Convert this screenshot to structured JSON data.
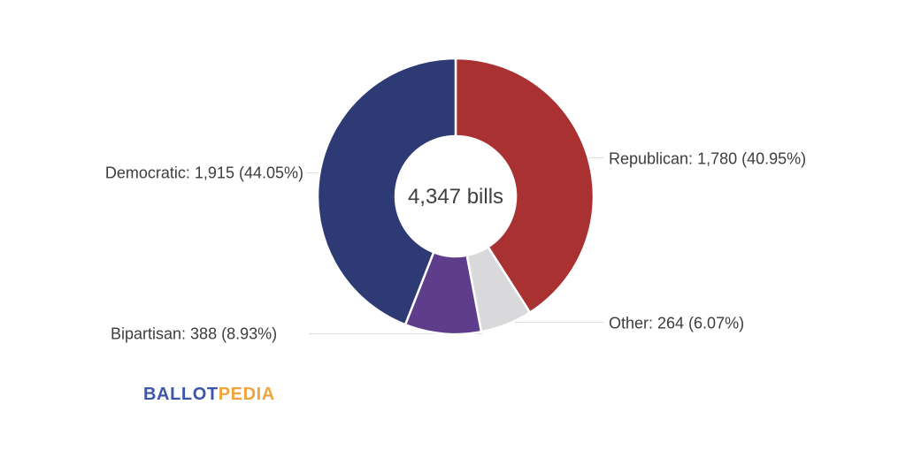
{
  "chart_data": {
    "type": "pie",
    "subtype": "donut",
    "title": "",
    "center_label": "4,347 bills",
    "total_value": 4347,
    "unit": "bills",
    "start_angle_deg": 0,
    "direction": "clockwise",
    "connector_color": "#dddddd",
    "hole_fill": "#ffffff",
    "segments": [
      {
        "name": "Republican",
        "value": 1780,
        "pct": 40.95,
        "color": "#a93132",
        "label": "Republican: 1,780 (40.95%)"
      },
      {
        "name": "Other",
        "value": 264,
        "pct": 6.07,
        "color": "#d9d9db",
        "label": "Other: 264 (6.07%)"
      },
      {
        "name": "Bipartisan",
        "value": 388,
        "pct": 8.93,
        "color": "#5e3d8c",
        "label": "Bipartisan: 388 (8.93%)"
      },
      {
        "name": "Democratic",
        "value": 1915,
        "pct": 44.05,
        "color": "#2d3a74",
        "label": "Democratic: 1,915 (44.05%)"
      }
    ]
  },
  "branding": {
    "logo_part1": "BALLOT",
    "logo_part2": "PEDIA",
    "logo_part1_color": "#3d56a8",
    "logo_part2_color": "#f0a43c"
  }
}
